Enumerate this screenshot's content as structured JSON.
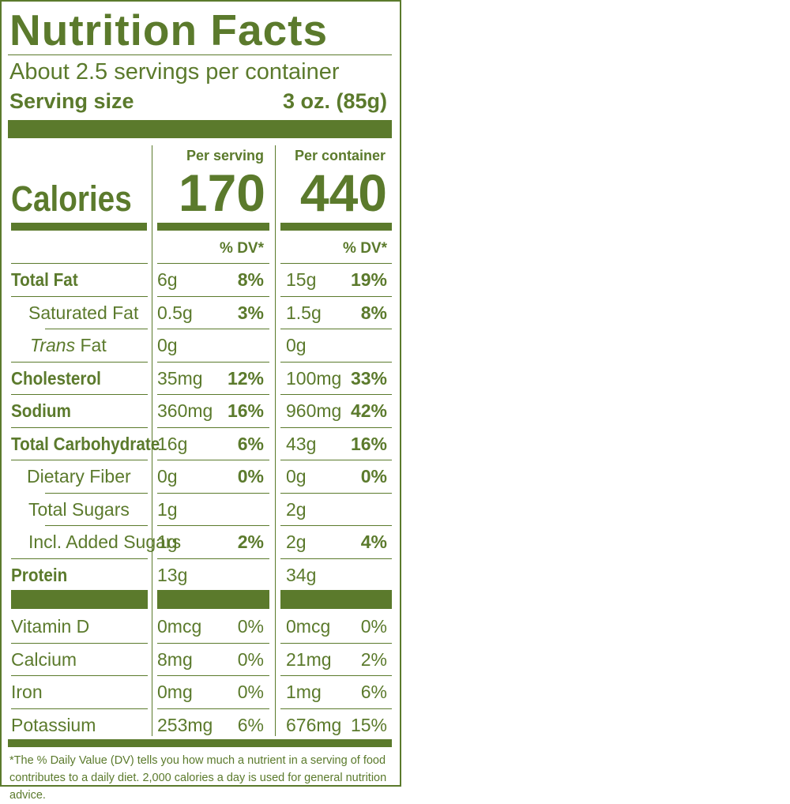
{
  "label": {
    "title": "Nutrition Facts",
    "servings_per_container": "About 2.5 servings per container",
    "serving_size_label": "Serving size",
    "serving_size_value": "3 oz. (85g)",
    "per_serving_header": "Per serving",
    "per_container_header": "Per container",
    "calories_label": "Calories",
    "calories_per_serving": "170",
    "calories_per_container": "440",
    "dv_header": "% DV*",
    "nutrients": [
      {
        "name": "Total Fat",
        "bold": true,
        "indent": 0,
        "serv_amt": "6g",
        "serv_dv": "8%",
        "cont_amt": "15g",
        "cont_dv": "19%"
      },
      {
        "name": "Saturated Fat",
        "bold": false,
        "indent": 22,
        "serv_amt": "0.5g",
        "serv_dv": "3%",
        "cont_amt": "1.5g",
        "cont_dv": "8%"
      },
      {
        "name_italic": "Trans",
        "name": " Fat",
        "bold": false,
        "indent": 24,
        "serv_amt": "0g",
        "serv_dv": "",
        "cont_amt": "0g",
        "cont_dv": ""
      },
      {
        "name": "Cholesterol",
        "bold": true,
        "indent": 0,
        "serv_amt": "35mg",
        "serv_dv": "12%",
        "cont_amt": "100mg",
        "cont_dv": "33%"
      },
      {
        "name": "Sodium",
        "bold": true,
        "indent": 0,
        "serv_amt": "360mg",
        "serv_dv": "16%",
        "cont_amt": "960mg",
        "cont_dv": "42%"
      },
      {
        "name": "Total Carbohydrate",
        "bold": true,
        "indent": 0,
        "serv_amt": "16g",
        "serv_dv": "6%",
        "cont_amt": "43g",
        "cont_dv": "16%"
      },
      {
        "name": "Dietary Fiber",
        "bold": false,
        "indent": 20,
        "serv_amt": "0g",
        "serv_dv": "0%",
        "cont_amt": "0g",
        "cont_dv": "0%"
      },
      {
        "name": "Total Sugars",
        "bold": false,
        "indent": 22,
        "serv_amt": "1g",
        "serv_dv": "",
        "cont_amt": "2g",
        "cont_dv": ""
      },
      {
        "name": "Incl. Added Sugars",
        "bold": false,
        "indent": 22,
        "serv_amt": "1g",
        "serv_dv": "2%",
        "cont_amt": "2g",
        "cont_dv": "4%"
      },
      {
        "name": "Protein",
        "bold": true,
        "indent": 0,
        "serv_amt": "13g",
        "serv_dv": "",
        "cont_amt": "34g",
        "cont_dv": ""
      }
    ],
    "vitamins": [
      {
        "name": "Vitamin D",
        "serv_amt": "0mcg",
        "serv_dv": "0%",
        "cont_amt": "0mcg",
        "cont_dv": "0%"
      },
      {
        "name": "Calcium",
        "serv_amt": "8mg",
        "serv_dv": "0%",
        "cont_amt": "21mg",
        "cont_dv": "2%"
      },
      {
        "name": "Iron",
        "serv_amt": "0mg",
        "serv_dv": "0%",
        "cont_amt": "1mg",
        "cont_dv": "6%"
      },
      {
        "name": "Potassium",
        "serv_amt": "253mg",
        "serv_dv": "6%",
        "cont_amt": "676mg",
        "cont_dv": "15%"
      }
    ],
    "footnote": "*The % Daily Value (DV) tells you how much a nutrient in a serving of food contributes to a daily diet. 2,000 calories a day is used for general nutrition advice.",
    "colors": {
      "label_green": "#5b7a2c",
      "background": "#ffffff"
    }
  }
}
